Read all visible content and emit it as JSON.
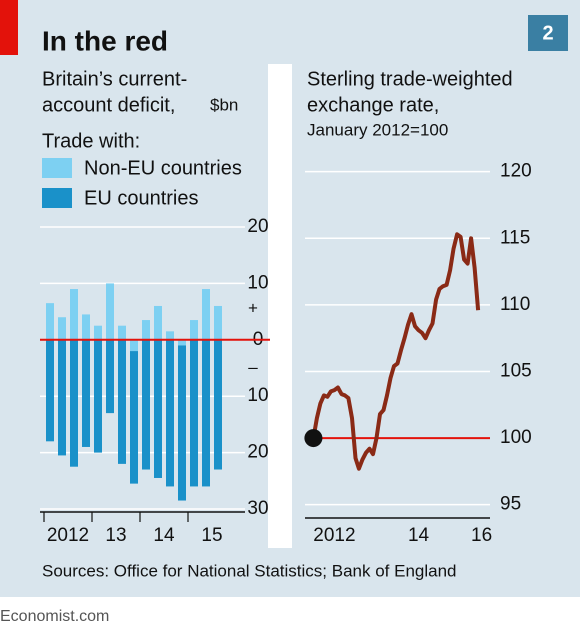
{
  "title": "In the red",
  "badge": "2",
  "source": "Sources: Office for National Statistics; Bank of England",
  "footer": "Economist.com",
  "chart_data": [
    {
      "type": "bar",
      "stacked": true,
      "title_lines": [
        "Britain’s current-",
        "account deficit,"
      ],
      "unit": "$bn",
      "legend_title": "Trade with:",
      "categories": [
        "2012",
        null,
        null,
        null,
        "13",
        null,
        null,
        null,
        "14",
        null,
        null,
        null,
        "15",
        null,
        null
      ],
      "series": [
        {
          "name": "Non-EU countries",
          "color": "#7dd0f2",
          "values": [
            6.5,
            4,
            9,
            4.5,
            2.5,
            10,
            2.5,
            -2,
            3.5,
            6,
            1.5,
            -1,
            3.5,
            9,
            6
          ]
        },
        {
          "name": "EU countries",
          "color": "#1a91c9",
          "values": [
            -18,
            -20.5,
            -22.5,
            -19,
            -20,
            -13,
            -22,
            -23.5,
            -23,
            -24.5,
            -26,
            -27.5,
            -26,
            -26,
            -23
          ]
        }
      ],
      "ylim": [
        -30,
        20
      ],
      "yticks": [
        {
          "value": -30,
          "label": "30"
        },
        {
          "value": -20,
          "label": "20"
        },
        {
          "value": -10,
          "label": "10"
        },
        0,
        10,
        20
      ],
      "sign_labels": [
        "+",
        "–"
      ],
      "zero_line_color": "#e3120b",
      "grid": true
    },
    {
      "type": "line",
      "title_lines": [
        "Sterling trade-weighted",
        "exchange rate,"
      ],
      "subtitle": "January 2012=100",
      "x": [
        2012,
        2012.083,
        2012.167,
        2012.25,
        2012.333,
        2012.417,
        2012.5,
        2012.583,
        2012.667,
        2012.75,
        2012.833,
        2012.917,
        2013,
        2013.083,
        2013.167,
        2013.25,
        2013.333,
        2013.417,
        2013.5,
        2013.583,
        2013.667,
        2013.75,
        2013.833,
        2013.917,
        2014,
        2014.083,
        2014.167,
        2014.25,
        2014.333,
        2014.417,
        2014.5,
        2014.583,
        2014.667,
        2014.75,
        2014.833,
        2014.917,
        2015,
        2015.083,
        2015.167,
        2015.25,
        2015.333,
        2015.417,
        2015.5,
        2015.583,
        2015.667,
        2015.75,
        2015.833,
        2015.917
      ],
      "values": [
        100,
        101.5,
        102.6,
        103.2,
        103.1,
        103.5,
        103.6,
        103.8,
        103.3,
        103.2,
        103,
        101.5,
        98.5,
        97.7,
        98.4,
        98.9,
        99.2,
        98.8,
        100,
        101.8,
        102.1,
        103.2,
        104.5,
        105.4,
        105.6,
        106.6,
        107.5,
        108.5,
        109.3,
        108.4,
        108.1,
        107.9,
        107.5,
        108.1,
        108.6,
        110.4,
        111.2,
        111.4,
        111.5,
        112.6,
        114.2,
        115.3,
        115.1,
        113.4,
        113.1,
        115,
        112.8,
        109.6
      ],
      "color": "#8a2a16",
      "xlim": [
        2011.8,
        2016.2
      ],
      "xticks": [
        {
          "value": 2012.5,
          "label": "2012"
        },
        {
          "value": 2014.5,
          "label": "14"
        },
        {
          "value": 2016,
          "label": "16"
        }
      ],
      "ylim": [
        94,
        122
      ],
      "yticks": [
        95,
        100,
        105,
        110,
        115,
        120
      ],
      "reference_line": 100,
      "reference_color": "#e3120b",
      "start_marker_color": "#111111",
      "grid": true
    }
  ]
}
